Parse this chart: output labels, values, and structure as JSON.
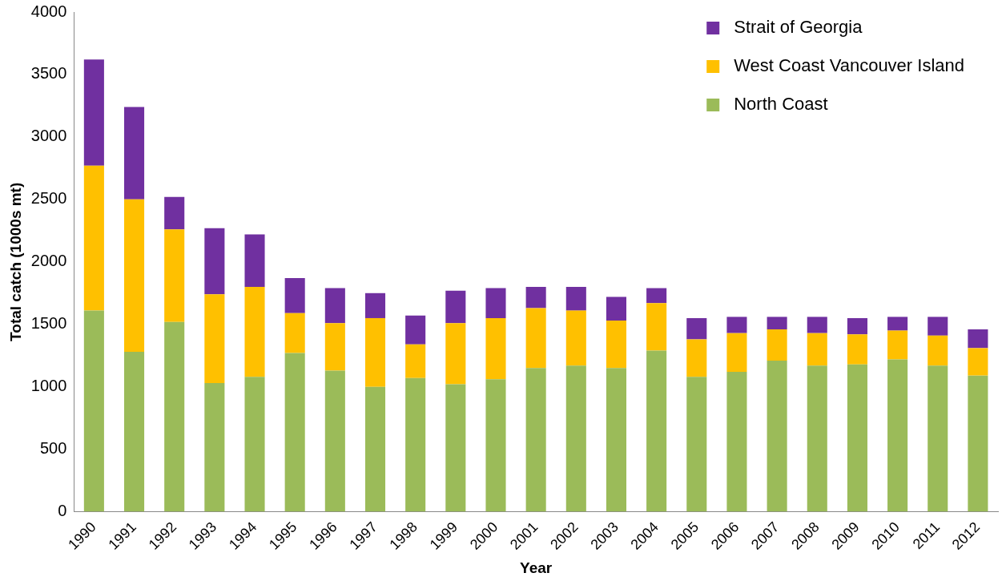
{
  "chart_data": {
    "type": "bar",
    "stacked": true,
    "xlabel": "Year",
    "ylabel": "Total catch (1000s mt)",
    "categories": [
      "1990",
      "1991",
      "1992",
      "1993",
      "1994",
      "1995",
      "1996",
      "1997",
      "1998",
      "1999",
      "2000",
      "2001",
      "2002",
      "2003",
      "2004",
      "2005",
      "2006",
      "2007",
      "2008",
      "2009",
      "2010",
      "2011",
      "2012"
    ],
    "series": [
      {
        "name": "North Coast",
        "color": "#9bbb59",
        "values": [
          1610,
          1280,
          1520,
          1030,
          1080,
          1270,
          1130,
          1000,
          1070,
          1020,
          1060,
          1150,
          1170,
          1150,
          1290,
          1080,
          1120,
          1210,
          1170,
          1180,
          1220,
          1170,
          1090
        ]
      },
      {
        "name": "West Coast Vancouver Island",
        "color": "#ffc000",
        "values": [
          1160,
          1220,
          740,
          710,
          720,
          320,
          380,
          550,
          270,
          490,
          490,
          480,
          440,
          380,
          380,
          300,
          310,
          250,
          260,
          240,
          230,
          240,
          220
        ]
      },
      {
        "name": "Strait of Georgia",
        "color": "#7030a0",
        "values": [
          850,
          740,
          260,
          530,
          420,
          280,
          280,
          200,
          230,
          260,
          240,
          170,
          190,
          190,
          120,
          170,
          130,
          100,
          130,
          130,
          110,
          150,
          150
        ]
      }
    ],
    "ylim": [
      0,
      4000
    ],
    "yticks": [
      0,
      500,
      1000,
      1500,
      2000,
      2500,
      3000,
      3500,
      4000
    ],
    "legend": "top right"
  }
}
